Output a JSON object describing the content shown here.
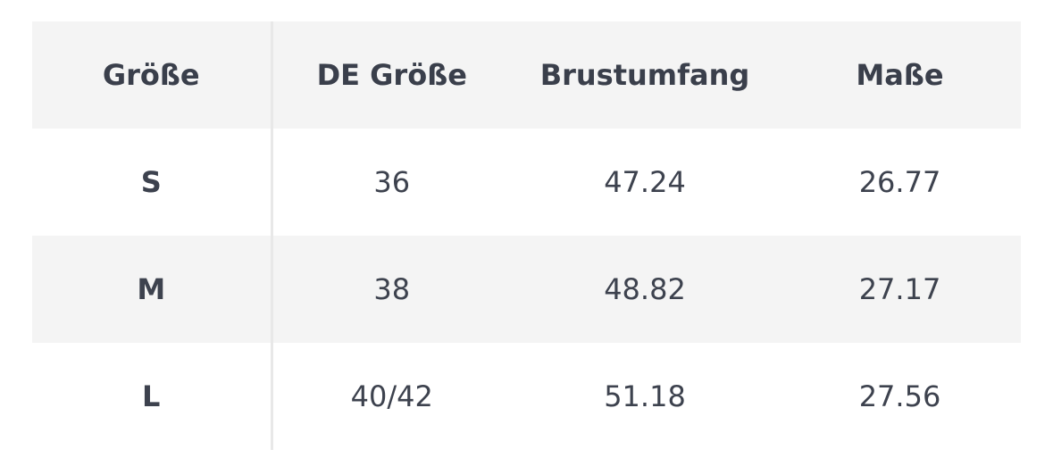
{
  "table": {
    "headers": [
      "Größe",
      "DE Größe",
      "Brustumfang",
      "Maße"
    ],
    "rows": [
      [
        "S",
        "36",
        "47.24",
        "26.77"
      ],
      [
        "M",
        "38",
        "48.82",
        "27.17"
      ],
      [
        "L",
        "40/42",
        "51.18",
        "27.56"
      ]
    ]
  }
}
